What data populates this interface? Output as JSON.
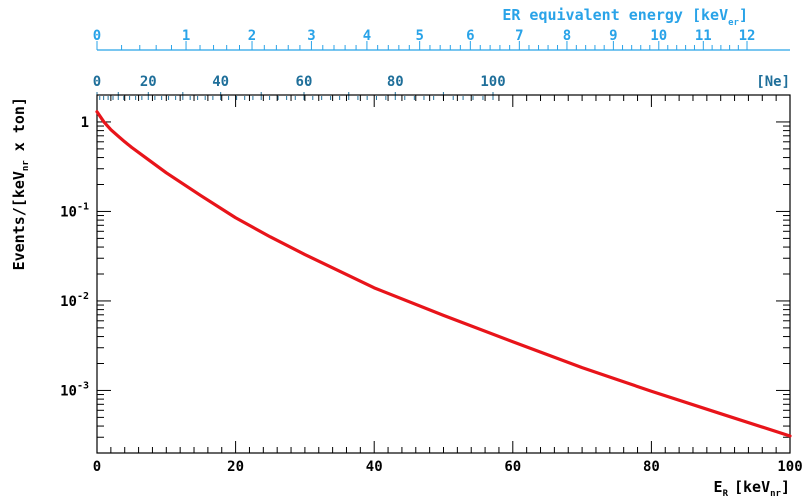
{
  "chart_data": {
    "type": "line",
    "title": "",
    "xlabel_main": "E",
    "xlabel_sub": "R",
    "xlabel_unit_open": "[keV",
    "xlabel_unit_sub": "nr",
    "xlabel_unit_close": "]",
    "ylabel": "Events/[keV",
    "ylabel_sub": "nr",
    "ylabel_tail": " x ton]",
    "xlim": [
      0,
      100
    ],
    "ylim": [
      0.0002,
      2.0
    ],
    "yscale": "log",
    "x_ticks": [
      {
        "value": 0,
        "label": "0"
      },
      {
        "value": 20,
        "label": "20"
      },
      {
        "value": 40,
        "label": "40"
      },
      {
        "value": 60,
        "label": "60"
      },
      {
        "value": 80,
        "label": "80"
      },
      {
        "value": 100,
        "label": "100"
      }
    ],
    "y_ticks": [
      {
        "value": 1,
        "base": "1",
        "exp": ""
      },
      {
        "value": 0.1,
        "base": "10",
        "exp": "-1"
      },
      {
        "value": 0.01,
        "base": "10",
        "exp": "-2"
      },
      {
        "value": 0.001,
        "base": "10",
        "exp": "-3"
      }
    ],
    "series": [
      {
        "color": "#e8141a",
        "x": [
          0,
          1,
          2,
          3,
          4,
          5,
          7,
          10,
          15,
          20,
          25,
          30,
          40,
          50,
          60,
          70,
          80,
          90,
          100
        ],
        "y": [
          1.3,
          1.0,
          0.82,
          0.7,
          0.6,
          0.52,
          0.4,
          0.27,
          0.15,
          0.085,
          0.052,
          0.033,
          0.014,
          0.0069,
          0.0035,
          0.0018,
          0.00098,
          0.00055,
          0.00031
        ]
      }
    ],
    "er_axis": {
      "label": "ER equivalent energy [keV",
      "label_sub": "er",
      "label_close": "]",
      "color": "#29a3e8",
      "ticks": [
        {
          "value": 0,
          "label": "0"
        },
        {
          "value": 1,
          "label": "1"
        },
        {
          "value": 2,
          "label": "2"
        },
        {
          "value": 3,
          "label": "3"
        },
        {
          "value": 4,
          "label": "4"
        },
        {
          "value": 5,
          "label": "5"
        },
        {
          "value": 6,
          "label": "6"
        },
        {
          "value": 7,
          "label": "7"
        },
        {
          "value": 8,
          "label": "8"
        },
        {
          "value": 9,
          "label": "9"
        },
        {
          "value": 10,
          "label": "10"
        },
        {
          "value": 11,
          "label": "11"
        },
        {
          "value": 12,
          "label": "12"
        }
      ]
    },
    "ne_axis": {
      "label": "[Ne]",
      "color": "#1f6f9a",
      "ticks": [
        {
          "value": 0,
          "label": "0"
        },
        {
          "value": 20,
          "label": "20"
        },
        {
          "value": 40,
          "label": "40"
        },
        {
          "value": 60,
          "label": "60"
        },
        {
          "value": 80,
          "label": "80"
        },
        {
          "value": 100,
          "label": "100"
        }
      ]
    }
  }
}
